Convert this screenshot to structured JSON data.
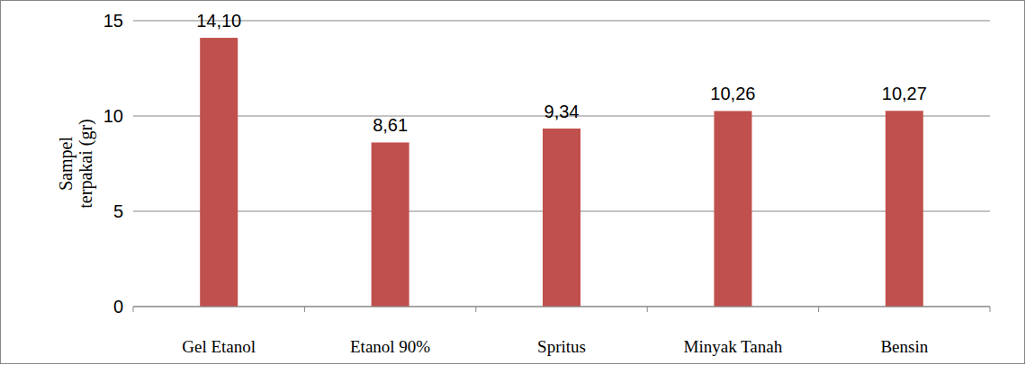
{
  "chart_data": {
    "type": "bar",
    "ylabel": "Sampel terpakai (gr)",
    "categories": [
      "Gel Etanol",
      "Etanol 90%",
      "Spritus",
      "Minyak Tanah",
      "Bensin"
    ],
    "values": [
      14.1,
      8.61,
      9.34,
      10.26,
      10.27
    ],
    "value_labels": [
      "14,10",
      "8,61",
      "9,34",
      "10,26",
      "10,27"
    ],
    "color": "#c0504d",
    "ylim": [
      0,
      15
    ],
    "yticks": [
      0,
      5,
      10,
      15
    ],
    "grid": true,
    "data_labels": true
  }
}
